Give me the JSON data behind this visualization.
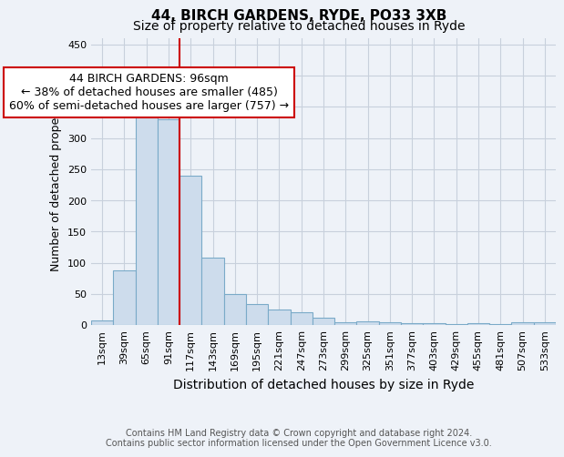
{
  "title": "44, BIRCH GARDENS, RYDE, PO33 3XB",
  "subtitle": "Size of property relative to detached houses in Ryde",
  "xlabel": "Distribution of detached houses by size in Ryde",
  "ylabel": "Number of detached properties",
  "categories": [
    "13sqm",
    "39sqm",
    "65sqm",
    "91sqm",
    "117sqm",
    "143sqm",
    "169sqm",
    "195sqm",
    "221sqm",
    "247sqm",
    "273sqm",
    "299sqm",
    "325sqm",
    "351sqm",
    "377sqm",
    "403sqm",
    "429sqm",
    "455sqm",
    "481sqm",
    "507sqm",
    "533sqm"
  ],
  "values": [
    7,
    88,
    345,
    330,
    240,
    108,
    49,
    33,
    25,
    21,
    11,
    5,
    6,
    5,
    3,
    3,
    2,
    3,
    1,
    4,
    4
  ],
  "bar_color": "#cddcec",
  "bar_edge_color": "#7aaac8",
  "bar_linewidth": 0.8,
  "vline_color": "#cc0000",
  "vline_pos": 3.5,
  "annotation_text": "44 BIRCH GARDENS: 96sqm\n← 38% of detached houses are smaller (485)\n60% of semi-detached houses are larger (757) →",
  "annotation_box_color": "#ffffff",
  "annotation_box_edge_color": "#cc0000",
  "ylim": [
    0,
    460
  ],
  "yticks": [
    0,
    50,
    100,
    150,
    200,
    250,
    300,
    350,
    400,
    450
  ],
  "grid_color": "#c8d0dc",
  "background_color": "#eef2f8",
  "footer_line1": "Contains HM Land Registry data © Crown copyright and database right 2024.",
  "footer_line2": "Contains public sector information licensed under the Open Government Licence v3.0.",
  "title_fontsize": 11,
  "subtitle_fontsize": 10,
  "xlabel_fontsize": 10,
  "ylabel_fontsize": 9,
  "tick_fontsize": 8,
  "annotation_fontsize": 9,
  "footer_fontsize": 7
}
